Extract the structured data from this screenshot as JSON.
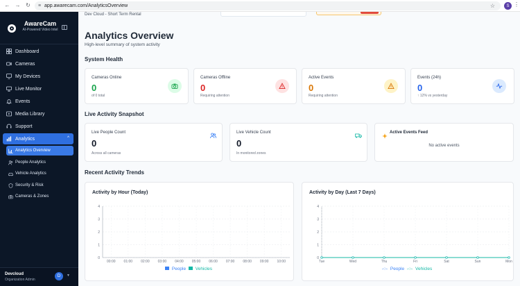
{
  "browser": {
    "url": "app.awarecam.com/AnalyticsOverview",
    "profile_initial": "S"
  },
  "brand": {
    "name": "AwareCam",
    "tagline": "AI-Powered Video Intel"
  },
  "sidebar": {
    "items": [
      {
        "label": "Dashboard",
        "icon": "grid-icon"
      },
      {
        "label": "Cameras",
        "icon": "camera-icon"
      },
      {
        "label": "My Devices",
        "icon": "devices-icon"
      },
      {
        "label": "Live Monitor",
        "icon": "monitor-icon"
      },
      {
        "label": "Events",
        "icon": "bell-icon"
      },
      {
        "label": "Media Library",
        "icon": "media-icon"
      },
      {
        "label": "Support",
        "icon": "headset-icon"
      },
      {
        "label": "Analytics",
        "icon": "chart-icon"
      }
    ],
    "subitems": [
      {
        "label": "Analytics Overview",
        "icon": "bar-chart-icon"
      },
      {
        "label": "People Analytics",
        "icon": "people-icon"
      },
      {
        "label": "Vehicle Analytics",
        "icon": "car-icon"
      },
      {
        "label": "Security & Risk",
        "icon": "shield-icon"
      },
      {
        "label": "Cameras & Zones",
        "icon": "camera-zone-icon"
      }
    ]
  },
  "user": {
    "name": "Devcloud",
    "role": "Organization Admin",
    "initial": "D"
  },
  "topbar": {
    "org": "Dev Cloud - Short Term Rental"
  },
  "page": {
    "title": "Analytics Overview",
    "subtitle": "High-level summary of system activity"
  },
  "sections": {
    "health": "System Health",
    "snapshot": "Live Activity Snapshot",
    "trends": "Recent Activity Trends"
  },
  "health_cards": [
    {
      "label": "Cameras Online",
      "value": "0",
      "note": "of 0 total",
      "color": "#16a34a",
      "bg": "#dcfce7"
    },
    {
      "label": "Cameras Offline",
      "value": "0",
      "note": "Requiring attention",
      "color": "#dc2626",
      "bg": "#fee2e2"
    },
    {
      "label": "Active Events",
      "value": "0",
      "note": "Requiring attention",
      "color": "#d97706",
      "bg": "#fef3c7"
    },
    {
      "label": "Events (24h)",
      "value": "0",
      "note": "↑ 12% vs yesterday",
      "color": "#2563eb",
      "bg": "#dbeafe"
    }
  ],
  "snapshot_cards": [
    {
      "label": "Live People Count",
      "value": "0",
      "note": "Across all cameras"
    },
    {
      "label": "Live Vehicle Count",
      "value": "0",
      "note": "In monitored zones"
    }
  ],
  "feed": {
    "title": "Active Events Feed",
    "empty": "No active events"
  },
  "legend": {
    "people": "People",
    "vehicles": "Vehicles"
  },
  "colors": {
    "people": "#3b82f6",
    "vehicles": "#14b8a6"
  },
  "chart_data": [
    {
      "type": "bar",
      "title": "Activity by Hour (Today)",
      "categories": [
        "00:00",
        "01:00",
        "02:00",
        "03:00",
        "04:00",
        "05:00",
        "06:00",
        "07:00",
        "08:00",
        "09:00",
        "10:00"
      ],
      "series": [
        {
          "name": "People",
          "values": [
            0,
            0,
            0,
            0,
            0,
            0,
            0,
            0,
            0,
            0,
            0
          ]
        },
        {
          "name": "Vehicles",
          "values": [
            0,
            0,
            0,
            0,
            0,
            0,
            0,
            0,
            0,
            0,
            0
          ]
        }
      ],
      "ylim": [
        0,
        4
      ],
      "yticks": [
        0,
        1,
        2,
        3,
        4
      ],
      "grid": true,
      "legend": "bottom"
    },
    {
      "type": "line",
      "title": "Activity by Day (Last 7 Days)",
      "categories": [
        "Tue",
        "Wed",
        "Thu",
        "Fri",
        "Sat",
        "Sun",
        "Mon"
      ],
      "series": [
        {
          "name": "People",
          "values": [
            0,
            0,
            0,
            0,
            0,
            0,
            0
          ]
        },
        {
          "name": "Vehicles",
          "values": [
            0,
            0,
            0,
            0,
            0,
            0,
            0
          ]
        }
      ],
      "ylim": [
        0,
        4
      ],
      "yticks": [
        0,
        1,
        2,
        3,
        4
      ],
      "grid": true,
      "legend": "bottom"
    }
  ]
}
